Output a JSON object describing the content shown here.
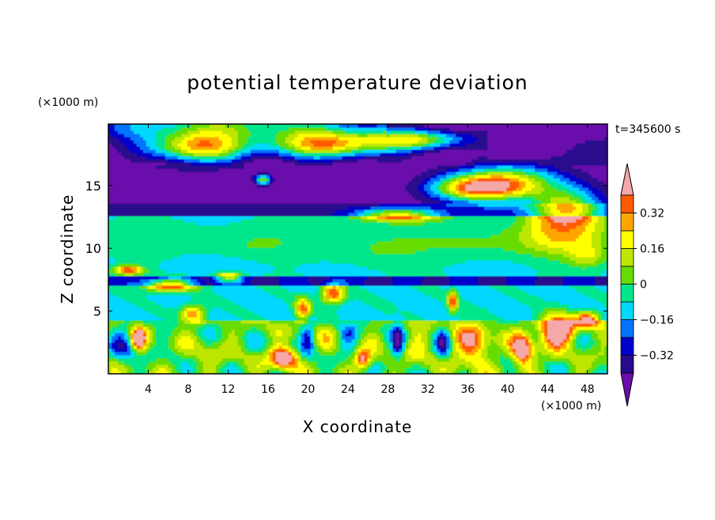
{
  "chart_data": {
    "type": "heatmap",
    "title": "potential temperature deviation",
    "xlabel": "X coordinate",
    "ylabel": "Z coordinate",
    "x_unit": "(×1000 m)",
    "y_unit": "(×1000 m)",
    "time_label": "t=345600 s",
    "xlim": [
      0,
      50
    ],
    "ylim": [
      0,
      19.9
    ],
    "x_ticks": [
      4,
      8,
      12,
      16,
      20,
      24,
      28,
      32,
      36,
      40,
      44,
      48
    ],
    "y_ticks": [
      5,
      10,
      15
    ],
    "colorbar": {
      "levels": [
        -0.4,
        -0.32,
        -0.24,
        -0.16,
        -0.08,
        0,
        0.08,
        0.16,
        0.24,
        0.32,
        0.4
      ],
      "tick_labels": [
        "0.32",
        "0.16",
        "0",
        "−0.16",
        "−0.32"
      ],
      "tick_values": [
        0.32,
        0.16,
        0,
        -0.16,
        -0.32
      ],
      "colors": [
        "#6a0dad",
        "#2a0a8c",
        "#0000cc",
        "#0073ff",
        "#00d8ff",
        "#00e68a",
        "#66dd00",
        "#bde600",
        "#ffff00",
        "#ffa500",
        "#ff5a00",
        "#ff2020",
        "#f4a8a8"
      ],
      "extend": "both"
    }
  }
}
